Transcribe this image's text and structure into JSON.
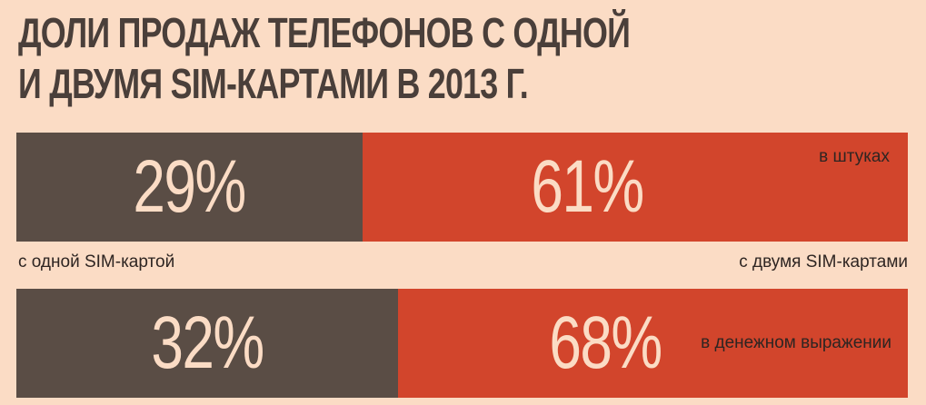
{
  "title": {
    "line1": "ДОЛИ ПРОДАЖ ТЕЛЕФОНОВ С ОДНОЙ",
    "line2": "И ДВУМЯ SIM-КАРТАМИ В 2013 Г."
  },
  "colors": {
    "background": "#fbdcc5",
    "single_sim": "#5a4d45",
    "dual_sim": "#d2452c",
    "value_text": "#fbdcc5"
  },
  "chart_data": {
    "type": "bar",
    "orientation": "horizontal",
    "stacked": true,
    "title": "ДОЛИ ПРОДАЖ ТЕЛЕФОНОВ С ОДНОЙ И ДВУМЯ SIM-КАРТАМИ В 2013 Г.",
    "categories": [
      "в штуках",
      "в денежном выражении"
    ],
    "series": [
      {
        "name": "с одной SIM-картой",
        "values": [
          29,
          32
        ],
        "labels": [
          "29%",
          "32%"
        ]
      },
      {
        "name": "с двумя SIM-картами",
        "values": [
          61,
          68
        ],
        "labels": [
          "61%",
          "68%"
        ]
      }
    ],
    "legend": [
      "с одной SIM-картой",
      "с двумя SIM-картами"
    ],
    "unit": "%"
  }
}
